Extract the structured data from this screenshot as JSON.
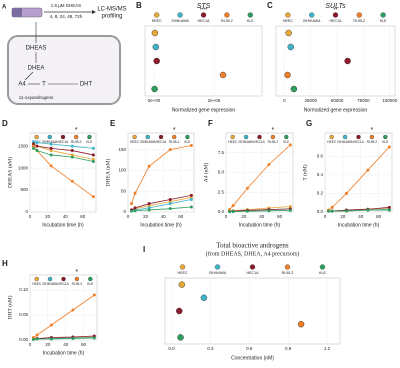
{
  "diagram": {
    "panel": "A",
    "dose": "1.6 µM DHEAS",
    "times": "4, 8, 24, 48, 72h",
    "method": "LC-MS/MS",
    "method2": "profiling",
    "dheas": "DHEAS",
    "dhea": "DHEA",
    "a4": "A4",
    "t": "T",
    "dht": "DHT",
    "oxy": "11-oxyandrogens"
  },
  "chart_data": [
    {
      "panel": "B",
      "type": "dot",
      "title": "STS",
      "annotation": "****",
      "categories": [
        "HEEC",
        "ISHIKAWA",
        "HEC1A",
        "RL95-2",
        "KLE"
      ],
      "colors": [
        "#e8a838",
        "#3fb3c9",
        "#8b1a2b",
        "#f07f2a",
        "#2e9e5e"
      ],
      "values": [
        30000,
        60000,
        90000,
        2300000,
        20000
      ],
      "xlabel": "Normalized gene expression",
      "xlim": [
        -300000,
        3600000
      ],
      "xticks": [
        {
          "value": 0,
          "label": "0e+00"
        },
        {
          "value": 2000000,
          "label": "2e+06"
        }
      ]
    },
    {
      "panel": "C",
      "type": "dot",
      "title": "SULTs",
      "annotation": "**",
      "categories": [
        "HEEC",
        "ISHIKAWA",
        "HEC1A",
        "RL95-2",
        "KLE"
      ],
      "colors": [
        "#e8a838",
        "#3fb3c9",
        "#8b1a2b",
        "#f07f2a",
        "#2e9e5e"
      ],
      "values": [
        4000,
        6000,
        60000,
        3000,
        9000
      ],
      "xlabel": "Normalized gene expression",
      "xlim": [
        -8000,
        105000
      ],
      "xticks": [
        0,
        25000,
        50000,
        75000,
        100000
      ]
    },
    {
      "panel": "D",
      "type": "line",
      "annotation": "*",
      "ylabel": "DHEAS (nM)",
      "xlabel": "Incubation time (h)",
      "x": [
        4,
        8,
        24,
        48,
        72
      ],
      "xlim": [
        0,
        75
      ],
      "xticks": [
        0,
        20,
        40,
        60
      ],
      "ylim": [
        0,
        1800
      ],
      "yticks": [
        0,
        500,
        1000,
        1500
      ],
      "series": [
        {
          "name": "HEEC",
          "color": "#e8a838",
          "values": [
            1550,
            1500,
            1400,
            1300,
            1200
          ]
        },
        {
          "name": "ISHIKAWA",
          "color": "#3fb3c9",
          "values": [
            1600,
            1580,
            1550,
            1500,
            1450
          ]
        },
        {
          "name": "HEC1A",
          "color": "#8b1a2b",
          "values": [
            1550,
            1500,
            1450,
            1400,
            1300
          ]
        },
        {
          "name": "RL95-2",
          "color": "#f07f2a",
          "values": [
            1500,
            1400,
            1050,
            700,
            350
          ]
        },
        {
          "name": "KLE",
          "color": "#2e9e5e",
          "values": [
            1450,
            1400,
            1300,
            1250,
            1150
          ]
        }
      ]
    },
    {
      "panel": "E",
      "type": "line",
      "annotation": "*",
      "ylabel": "DHEA (nM)",
      "xlabel": "Incubation time (h)",
      "x": [
        4,
        8,
        24,
        48,
        72
      ],
      "xlim": [
        0,
        75
      ],
      "xticks": [
        0,
        20,
        40,
        60
      ],
      "ylim": [
        0,
        190
      ],
      "yticks": [
        0,
        50,
        100,
        150
      ],
      "series": [
        {
          "name": "HEEC",
          "color": "#e8a838",
          "values": [
            5,
            8,
            15,
            25,
            35
          ]
        },
        {
          "name": "ISHIKAWA",
          "color": "#3fb3c9",
          "values": [
            3,
            5,
            10,
            20,
            30
          ]
        },
        {
          "name": "HEC1A",
          "color": "#8b1a2b",
          "values": [
            5,
            10,
            20,
            30,
            40
          ]
        },
        {
          "name": "RL95-2",
          "color": "#f07f2a",
          "values": [
            20,
            45,
            110,
            150,
            160
          ]
        },
        {
          "name": "KLE",
          "color": "#2e9e5e",
          "values": [
            2,
            3,
            5,
            8,
            12
          ]
        }
      ]
    },
    {
      "panel": "F",
      "type": "line",
      "annotation": "*",
      "ylabel": "A4 (nM)",
      "xlabel": "Incubation time (h)",
      "x": [
        4,
        8,
        24,
        48,
        72
      ],
      "xlim": [
        0,
        75
      ],
      "xticks": [
        0,
        20,
        40,
        60
      ],
      "ylim": [
        0,
        10
      ],
      "yticks": [
        {
          "value": 0,
          "label": "0.0"
        },
        2.5,
        {
          "value": 5,
          "label": "5.0"
        },
        7.5
      ],
      "series": [
        {
          "name": "HEEC",
          "color": "#e8a838",
          "values": [
            0.1,
            0.15,
            0.3,
            0.5,
            0.7
          ]
        },
        {
          "name": "ISHIKAWA",
          "color": "#3fb3c9",
          "values": [
            0.05,
            0.1,
            0.2,
            0.3,
            0.4
          ]
        },
        {
          "name": "HEC1A",
          "color": "#8b1a2b",
          "values": [
            0.1,
            0.1,
            0.2,
            0.3,
            0.4
          ]
        },
        {
          "name": "RL95-2",
          "color": "#f07f2a",
          "values": [
            0.3,
            0.8,
            3,
            6,
            8.5
          ]
        },
        {
          "name": "KLE",
          "color": "#2e9e5e",
          "values": [
            0.05,
            0.05,
            0.1,
            0.15,
            0.2
          ]
        }
      ]
    },
    {
      "panel": "G",
      "type": "line",
      "annotation": "*",
      "ylabel": "T (nM)",
      "xlabel": "Incubation time (h)",
      "x": [
        4,
        8,
        24,
        48,
        72
      ],
      "xlim": [
        0,
        75
      ],
      "xticks": [
        0,
        20,
        40,
        60
      ],
      "ylim": [
        0,
        0.85
      ],
      "yticks": [
        {
          "value": 0,
          "label": "0.0"
        },
        0.2,
        0.4,
        0.6
      ],
      "series": [
        {
          "name": "HEEC",
          "color": "#e8a838",
          "values": [
            0.01,
            0.01,
            0.02,
            0.03,
            0.04
          ]
        },
        {
          "name": "ISHIKAWA",
          "color": "#3fb3c9",
          "values": [
            0.01,
            0.01,
            0.02,
            0.02,
            0.03
          ]
        },
        {
          "name": "HEC1A",
          "color": "#8b1a2b",
          "values": [
            0.01,
            0.01,
            0.02,
            0.03,
            0.05
          ]
        },
        {
          "name": "RL95-2",
          "color": "#f07f2a",
          "values": [
            0.02,
            0.05,
            0.2,
            0.45,
            0.7
          ]
        },
        {
          "name": "KLE",
          "color": "#2e9e5e",
          "values": [
            0.01,
            0.01,
            0.01,
            0.02,
            0.02
          ]
        }
      ]
    },
    {
      "panel": "H",
      "type": "line",
      "annotation": "*",
      "ylabel": "DHT (nM)",
      "xlabel": "Incubation time (h)",
      "x": [
        4,
        8,
        24,
        48,
        72
      ],
      "xlim": [
        0,
        75
      ],
      "xticks": [
        0,
        20,
        40,
        60
      ],
      "ylim": [
        0,
        0.13
      ],
      "yticks": [
        {
          "value": 0,
          "label": "0.00"
        },
        0.05,
        {
          "value": 0.1,
          "label": "0.10"
        }
      ],
      "series": [
        {
          "name": "HEEC",
          "color": "#e8a838",
          "values": [
            0.002,
            0.003,
            0.004,
            0.005,
            0.006
          ]
        },
        {
          "name": "ISHIKAWA",
          "color": "#3fb3c9",
          "values": [
            0.002,
            0.002,
            0.003,
            0.004,
            0.005
          ]
        },
        {
          "name": "HEC1A",
          "color": "#8b1a2b",
          "values": [
            0.002,
            0.003,
            0.005,
            0.006,
            0.008
          ]
        },
        {
          "name": "RL95-2",
          "color": "#f07f2a",
          "values": [
            0.005,
            0.01,
            0.03,
            0.06,
            0.09
          ]
        },
        {
          "name": "KLE",
          "color": "#2e9e5e",
          "values": [
            0.001,
            0.002,
            0.002,
            0.003,
            0.004
          ]
        }
      ]
    },
    {
      "panel": "I",
      "type": "dot",
      "title": "Total bioactive androgens",
      "subtitle": "(from DHEAS, DHEA, A4 precursors)",
      "categories": [
        "HEEC",
        "ISHIKAWA",
        "HEC1A",
        "RL95-2",
        "KLE"
      ],
      "colors": [
        "#e8a838",
        "#3fb3c9",
        "#8b1a2b",
        "#f07f2a",
        "#2e9e5e"
      ],
      "values": [
        0.08,
        0.25,
        0.06,
        1.0,
        0.07
      ],
      "xlabel": "Concentration (nM)",
      "xlim": [
        -0.05,
        1.3
      ],
      "xticks": [
        {
          "value": 0,
          "label": "0.0"
        },
        0.3,
        0.6,
        0.9,
        1.2
      ]
    }
  ]
}
